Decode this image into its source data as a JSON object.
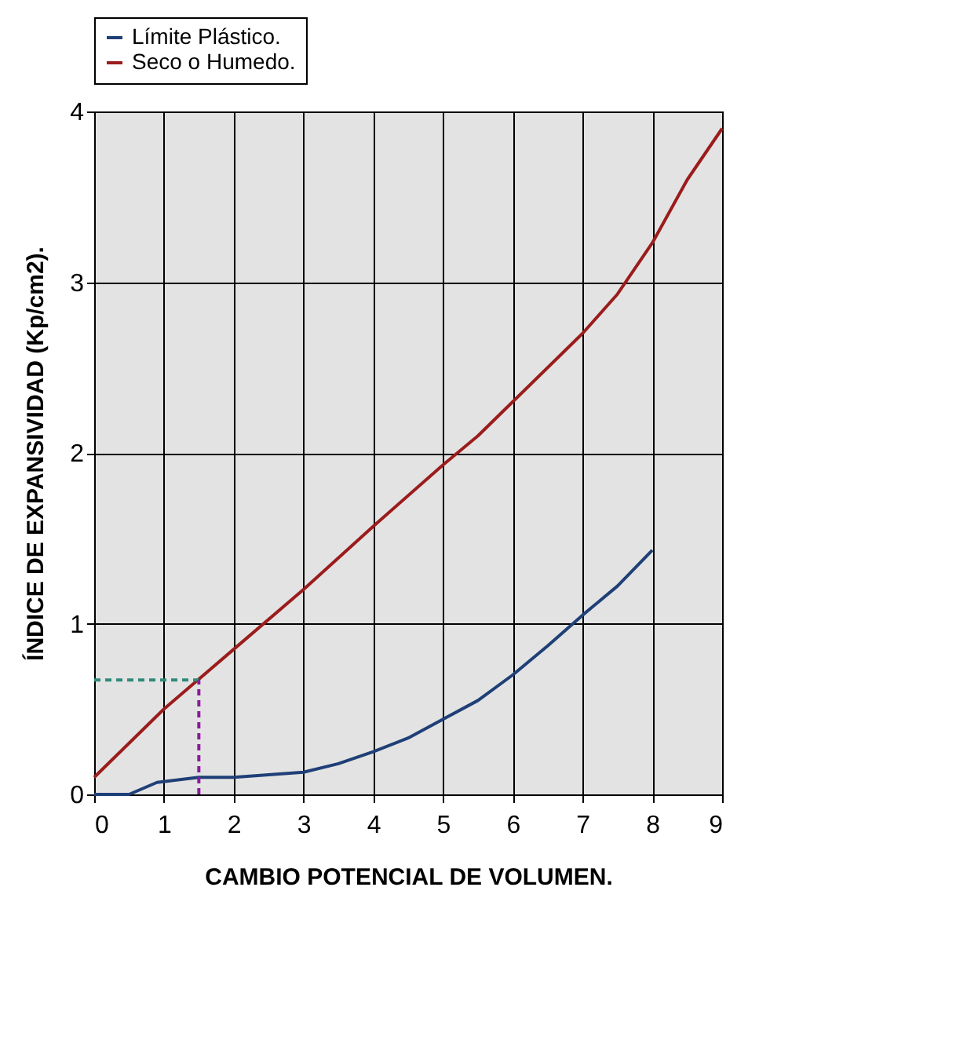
{
  "chart_data": {
    "type": "line",
    "xlabel": "CAMBIO POTENCIAL DE VOLUMEN.",
    "ylabel": "ÍNDICE DE EXPANSIVIDAD (Kp/cm2).",
    "xlim": [
      0,
      9
    ],
    "xticks": [
      0,
      1,
      2,
      3,
      4,
      5,
      6,
      7,
      8,
      9
    ],
    "ylim": [
      0,
      4
    ],
    "yticks": [
      0,
      1,
      2,
      3,
      4
    ],
    "grid": true,
    "legend": "top",
    "line_style": "solid",
    "marker": "none",
    "series": [
      {
        "name": "Límite Plástico.",
        "color": "#1f3f77",
        "x": [
          0,
          0.5,
          0.9,
          1.5,
          2,
          3,
          3.5,
          4,
          4.5,
          5,
          5.5,
          6,
          6.5,
          7,
          7.5,
          8
        ],
        "values": [
          0,
          0,
          0.07,
          0.1,
          0.1,
          0.13,
          0.18,
          0.25,
          0.33,
          0.44,
          0.55,
          0.7,
          0.87,
          1.05,
          1.22,
          1.43
        ]
      },
      {
        "name": "Seco o Humedo.",
        "color": "#9b1c1c",
        "x": [
          0,
          1,
          2,
          3,
          4,
          5,
          5.5,
          6,
          7,
          7.5,
          8,
          8.5,
          9
        ],
        "values": [
          0.1,
          0.5,
          0.85,
          1.2,
          1.57,
          1.93,
          2.1,
          2.3,
          2.7,
          2.93,
          3.23,
          3.6,
          3.9
        ]
      },
      {
        "color": "#2e8b7a",
        "line_style": "dashed",
        "x": [
          0,
          1.5
        ],
        "values": [
          0.67,
          0.67
        ]
      },
      {
        "color": "#8b1a9b",
        "line_style": "dashed",
        "x": [
          1.5,
          1.5
        ],
        "values": [
          0,
          0.67
        ]
      }
    ]
  }
}
